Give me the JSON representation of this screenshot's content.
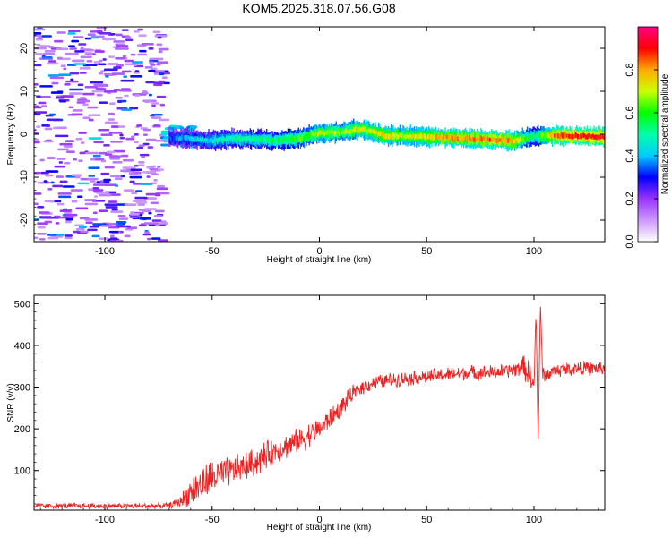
{
  "chart_data": [
    {
      "type": "heatmap",
      "title": "KOM5.2025.318.07.56.G08",
      "xlabel": "Height of straight line (km)",
      "ylabel": "Frequency (Hz)",
      "xlim": [
        -133,
        133
      ],
      "ylim": [
        -25,
        25
      ],
      "xticks": [
        -100,
        -50,
        0,
        50,
        100
      ],
      "yticks": [
        -20,
        -10,
        0,
        10,
        20
      ],
      "colorbar": {
        "label": "Normalized spectral amplitude",
        "range": [
          0,
          1
        ],
        "ticks": [
          "0.0",
          "0.2",
          "0.4",
          "0.6",
          "0.8"
        ],
        "colors": [
          "#ffffff",
          "#cc99ff",
          "#9933ff",
          "#0000ff",
          "#00ccff",
          "#00ffaa",
          "#00ff00",
          "#ccff00",
          "#ffaa00",
          "#ff0000",
          "#ff0088"
        ]
      },
      "ridge": {
        "x": [
          -70,
          -60,
          -50,
          -40,
          -30,
          -20,
          -10,
          0,
          10,
          20,
          30,
          40,
          50,
          60,
          70,
          80,
          90,
          100,
          110,
          120,
          133
        ],
        "freq": [
          -0.8,
          -1.0,
          -1.5,
          -1.0,
          -1.2,
          -1.5,
          -1.0,
          0.2,
          0.5,
          1.2,
          -0.3,
          -0.4,
          -0.6,
          -0.8,
          -1.0,
          -1.2,
          -1.6,
          -0.5,
          -0.3,
          -0.4,
          -0.6
        ],
        "amplitude": [
          0.35,
          0.4,
          0.45,
          0.5,
          0.5,
          0.55,
          0.6,
          0.7,
          0.65,
          0.7,
          0.75,
          0.7,
          0.75,
          0.8,
          0.8,
          0.85,
          0.8,
          0.5,
          0.85,
          0.9,
          0.9
        ]
      },
      "noise_region": {
        "xrange": [
          -133,
          -72
        ],
        "amplitude_range": [
          0.1,
          0.35
        ]
      }
    },
    {
      "type": "line",
      "title": "",
      "xlabel": "Height of straight line (km)",
      "ylabel": "SNR (v/v)",
      "xlim": [
        -133,
        133
      ],
      "ylim": [
        5,
        520
      ],
      "xticks": [
        -100,
        -50,
        0,
        50,
        100
      ],
      "yticks": [
        100,
        200,
        300,
        400,
        500
      ],
      "color": "#ee2222",
      "series": [
        {
          "x": [
            -133,
            -100,
            -80,
            -70,
            -65,
            -60,
            -55,
            -50,
            -45,
            -40,
            -35,
            -30,
            -25,
            -20,
            -15,
            -10,
            -5,
            0,
            5,
            10,
            15,
            20,
            25,
            30,
            40,
            50,
            60,
            70,
            80,
            90,
            95,
            98,
            100,
            101,
            102,
            103,
            104,
            106,
            110,
            120,
            133
          ],
          "values": [
            15,
            15,
            15,
            16,
            25,
            50,
            65,
            85,
            90,
            100,
            110,
            120,
            135,
            150,
            160,
            170,
            185,
            200,
            225,
            250,
            280,
            300,
            310,
            315,
            320,
            325,
            330,
            335,
            335,
            340,
            350,
            330,
            300,
            480,
            160,
            500,
            330,
            330,
            340,
            345,
            345
          ],
          "noise": [
            8,
            8,
            8,
            8,
            15,
            40,
            50,
            50,
            45,
            40,
            40,
            40,
            40,
            35,
            35,
            35,
            35,
            30,
            30,
            25,
            25,
            20,
            20,
            20,
            20,
            20,
            20,
            20,
            20,
            20,
            30,
            40,
            20,
            0,
            0,
            0,
            20,
            20,
            20,
            20,
            20
          ]
        }
      ]
    }
  ]
}
